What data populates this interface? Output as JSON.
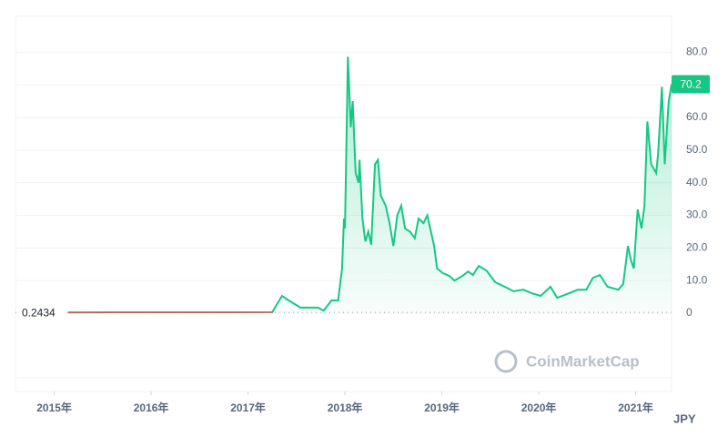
{
  "chart_data": {
    "type": "line",
    "watermark": "CoinMarketCap",
    "unit": "JPY",
    "x": [
      2015.14,
      2017.25,
      2017.35,
      2017.42,
      2017.54,
      2017.72,
      2017.78,
      2017.86,
      2017.93,
      2017.97,
      2017.99,
      2018.0,
      2018.03,
      2018.06,
      2018.08,
      2018.11,
      2018.14,
      2018.15,
      2018.18,
      2018.21,
      2018.24,
      2018.27,
      2018.31,
      2018.34,
      2018.37,
      2018.42,
      2018.46,
      2018.5,
      2018.54,
      2018.58,
      2018.62,
      2018.67,
      2018.72,
      2018.76,
      2018.81,
      2018.85,
      2018.88,
      2018.92,
      2018.95,
      2019.01,
      2019.08,
      2019.13,
      2019.21,
      2019.27,
      2019.32,
      2019.38,
      2019.46,
      2019.55,
      2019.65,
      2019.74,
      2019.84,
      2019.93,
      2020.02,
      2020.12,
      2020.19,
      2020.31,
      2020.4,
      2020.49,
      2020.56,
      2020.63,
      2020.71,
      2020.82,
      2020.87,
      2020.92,
      2020.95,
      2020.98,
      2021.02,
      2021.06,
      2021.09,
      2021.12,
      2021.16,
      2021.21,
      2021.23,
      2021.27,
      2021.3,
      2021.34,
      2021.37
    ],
    "series": [
      {
        "color": "#16c784",
        "down_color": "#ea3943",
        "values": [
          0.2434,
          0.3,
          5.3,
          3.9,
          1.7,
          1.7,
          0.8,
          3.9,
          3.9,
          13.7,
          29,
          26,
          78.6,
          57,
          65,
          43,
          40,
          47,
          29,
          22,
          25,
          21,
          45.7,
          47,
          36,
          33,
          27.6,
          20.6,
          30,
          33,
          26,
          25,
          23,
          29,
          27.6,
          30,
          26,
          20.6,
          13.7,
          12.3,
          11.4,
          10,
          11.4,
          12.8,
          11.7,
          14.5,
          13.1,
          9.5,
          8.1,
          6.7,
          7.2,
          6.1,
          5.3,
          8.1,
          4.7,
          6.1,
          7.2,
          7.2,
          10.9,
          11.7,
          8.1,
          7.2,
          8.9,
          20.6,
          16.4,
          13.7,
          31.8,
          26,
          33,
          58.8,
          45.7,
          43,
          48.5,
          69.4,
          45.7,
          65,
          70.2
        ]
      }
    ],
    "xlim": [
      2014.6,
      2021.37
    ],
    "xticks": [
      {
        "value": 2015,
        "label": "2015年"
      },
      {
        "value": 2016,
        "label": "2016年"
      },
      {
        "value": 2017,
        "label": "2017年"
      },
      {
        "value": 2018,
        "label": "2018年"
      },
      {
        "value": 2019,
        "label": "2019年"
      },
      {
        "value": 2020,
        "label": "2020年"
      },
      {
        "value": 2021,
        "label": "2021年"
      }
    ],
    "ylim": [
      -24,
      91
    ],
    "yticks": [
      0,
      {
        "value": 10,
        "label": "10.0"
      },
      {
        "value": 20,
        "label": "20.0"
      },
      {
        "value": 30,
        "label": "30.0"
      },
      {
        "value": 40,
        "label": "40.0"
      },
      {
        "value": 50,
        "label": "50.0"
      },
      {
        "value": 60,
        "label": "60.0"
      },
      {
        "value": 70,
        "label": "70.0"
      },
      {
        "value": 80,
        "label": "80.0"
      }
    ],
    "grid": true
  }
}
